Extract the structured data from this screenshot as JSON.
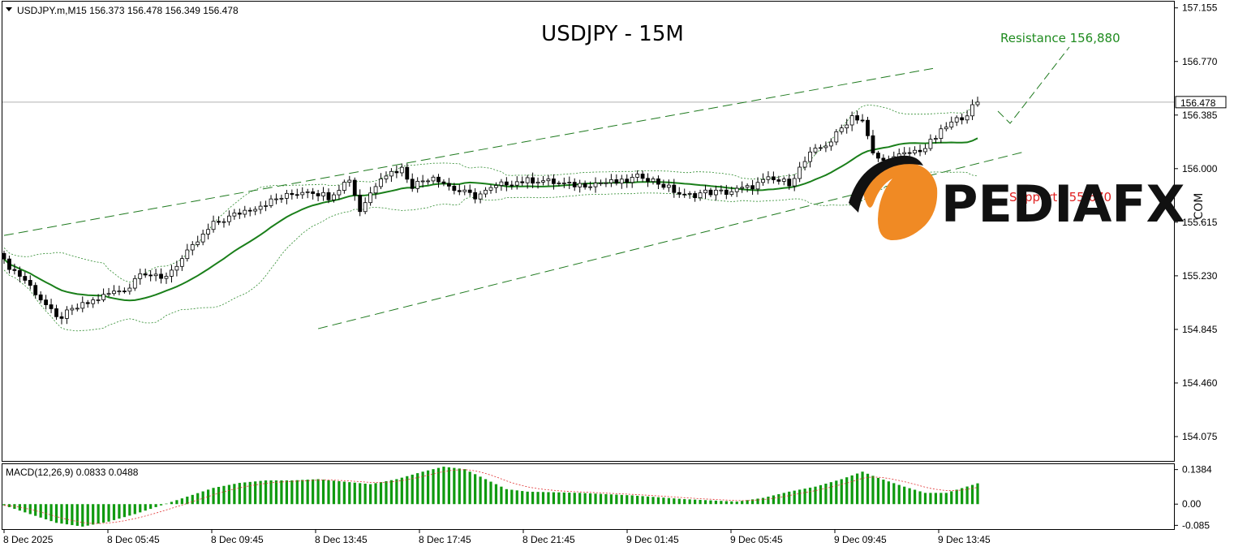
{
  "header": {
    "symbol_info": "USDJPY.m,M15  156.373 156.478 156.349 156.478"
  },
  "title": "USDJPY - 15M",
  "annotations": {
    "resistance": "Resistance 156,880",
    "support": "Support 155,670"
  },
  "watermark": {
    "brand": "PEDIAFX",
    "suffix": ".COM",
    "logo": "pediafx-logo-icon"
  },
  "colors": {
    "candle_bull": "#ffffff",
    "candle_bear": "#000000",
    "ma_line": "#1a7f1a",
    "bands": "#2e8b2e",
    "channel": "#1f7a1f",
    "macd_hist": "#0f9a0f",
    "macd_signal": "#e03030",
    "resistance_text": "#1f8b1f",
    "support_text": "#e02020",
    "logo_orange": "#f08a24"
  },
  "chart_data": [
    {
      "type": "candlestick",
      "title": "USDJPY - 15M",
      "y_axis_ticks": [
        "157.155",
        "156.770",
        "156.385",
        "156.000",
        "155.615",
        "155.230",
        "154.845",
        "154.460",
        "154.075"
      ],
      "ylim": [
        153.9,
        157.2
      ],
      "current_price": "156.478",
      "current_price_value": 156.478,
      "x_axis_ticks": [
        "8 Dec 2025",
        "8 Dec 05:45",
        "8 Dec 09:45",
        "8 Dec 13:45",
        "8 Dec 17:45",
        "8 Dec 21:45",
        "9 Dec 01:45",
        "9 Dec 05:45",
        "9 Dec 09:45",
        "9 Dec 13:45"
      ],
      "close_keypoints": [
        [
          0,
          155.33
        ],
        [
          4,
          155.2
        ],
        [
          8,
          155.02
        ],
        [
          10,
          154.92
        ],
        [
          14,
          155.0
        ],
        [
          20,
          155.1
        ],
        [
          24,
          155.15
        ],
        [
          26,
          155.27
        ],
        [
          30,
          155.2
        ],
        [
          34,
          155.35
        ],
        [
          40,
          155.6
        ],
        [
          46,
          155.7
        ],
        [
          52,
          155.78
        ],
        [
          58,
          155.85
        ],
        [
          62,
          155.8
        ],
        [
          66,
          155.93
        ],
        [
          68,
          155.7
        ],
        [
          72,
          155.95
        ],
        [
          76,
          156.0
        ],
        [
          78,
          155.88
        ],
        [
          82,
          155.95
        ],
        [
          86,
          155.85
        ],
        [
          90,
          155.8
        ],
        [
          96,
          155.9
        ],
        [
          102,
          155.92
        ],
        [
          108,
          155.88
        ],
        [
          114,
          155.9
        ],
        [
          118,
          155.9
        ],
        [
          122,
          155.95
        ],
        [
          126,
          155.88
        ],
        [
          130,
          155.8
        ],
        [
          134,
          155.83
        ],
        [
          138,
          155.83
        ],
        [
          142,
          155.86
        ],
        [
          146,
          155.92
        ],
        [
          150,
          155.9
        ],
        [
          154,
          156.1
        ],
        [
          158,
          156.2
        ],
        [
          162,
          156.38
        ],
        [
          164,
          156.35
        ],
        [
          166,
          156.1
        ],
        [
          168,
          156.05
        ],
        [
          172,
          156.1
        ],
        [
          176,
          156.15
        ],
        [
          180,
          156.3
        ],
        [
          184,
          156.4
        ],
        [
          186,
          156.478
        ]
      ],
      "candle_count": 187,
      "ma_line": true,
      "bollinger_bands": true,
      "channel_lines": true
    },
    {
      "type": "bar",
      "indicator": "MACD(12,26,9) 0.0833 0.0488",
      "indicator_name": "MACD(12,26,9)",
      "macd_value": 0.0833,
      "signal_value": 0.0488,
      "y_axis_ticks": [
        "0.1384",
        "0.00",
        "-0.085"
      ],
      "ylim": [
        -0.1,
        0.16
      ],
      "hist_keypoints": [
        [
          0,
          -0.005
        ],
        [
          5,
          -0.04
        ],
        [
          10,
          -0.075
        ],
        [
          15,
          -0.09
        ],
        [
          20,
          -0.07
        ],
        [
          25,
          -0.04
        ],
        [
          30,
          -0.005
        ],
        [
          35,
          0.03
        ],
        [
          40,
          0.065
        ],
        [
          45,
          0.085
        ],
        [
          50,
          0.095
        ],
        [
          55,
          0.095
        ],
        [
          60,
          0.1
        ],
        [
          65,
          0.09
        ],
        [
          70,
          0.08
        ],
        [
          75,
          0.1
        ],
        [
          80,
          0.13
        ],
        [
          84,
          0.15
        ],
        [
          88,
          0.14
        ],
        [
          92,
          0.1
        ],
        [
          96,
          0.06
        ],
        [
          100,
          0.05
        ],
        [
          110,
          0.045
        ],
        [
          120,
          0.035
        ],
        [
          130,
          0.02
        ],
        [
          140,
          0.01
        ],
        [
          145,
          0.025
        ],
        [
          150,
          0.05
        ],
        [
          155,
          0.07
        ],
        [
          160,
          0.1
        ],
        [
          164,
          0.13
        ],
        [
          167,
          0.105
        ],
        [
          172,
          0.07
        ],
        [
          176,
          0.045
        ],
        [
          180,
          0.045
        ],
        [
          186,
          0.0833
        ]
      ]
    }
  ]
}
